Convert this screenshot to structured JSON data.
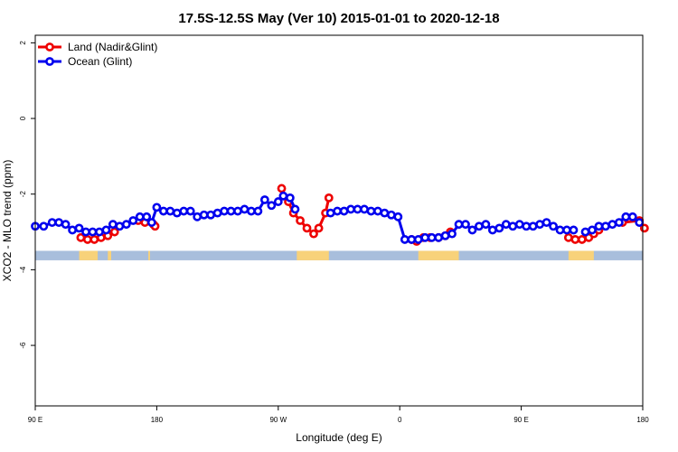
{
  "chart_data": {
    "type": "line",
    "title": "17.5S-12.5S May (Ver 10)   2015-01-01 to 2020-12-18",
    "xlabel": "Longitude (deg E)",
    "ylabel": "XCO2 - MLO trend (ppm)",
    "xlim": [
      90,
      450
    ],
    "ylim": [
      -7.6,
      2.2
    ],
    "x_ticks": [
      {
        "value": 90,
        "label": "90 E"
      },
      {
        "value": 162,
        "label": "180"
      },
      {
        "value": 234,
        "label": "90 W"
      },
      {
        "value": 306,
        "label": "0"
      },
      {
        "value": 378,
        "label": "90 E"
      },
      {
        "value": 450,
        "label": "180"
      }
    ],
    "y_ticks": [
      {
        "value": 2,
        "label": "2"
      },
      {
        "value": 0,
        "label": "0"
      },
      {
        "value": -2,
        "label": "-2"
      },
      {
        "value": -4,
        "label": "-4"
      },
      {
        "value": -6,
        "label": "-6"
      }
    ],
    "grid": false,
    "legend_position": "top-left",
    "series": [
      {
        "name": "Land (Nadir&Glint)",
        "color": "#ee0000",
        "segments": [
          [
            [
              117,
              -3.15
            ],
            [
              121,
              -3.2
            ],
            [
              125,
              -3.2
            ],
            [
              129,
              -3.15
            ],
            [
              133,
              -3.1
            ],
            [
              137,
              -3.0
            ]
          ],
          [
            [
              151,
              -2.7
            ],
            [
              155,
              -2.75
            ],
            [
              160,
              -2.8
            ],
            [
              161,
              -2.85
            ]
          ],
          [
            [
              236,
              -1.85
            ],
            [
              240,
              -2.2
            ],
            [
              243,
              -2.5
            ],
            [
              247,
              -2.7
            ],
            [
              251,
              -2.9
            ],
            [
              255,
              -3.05
            ],
            [
              258,
              -2.9
            ],
            [
              262,
              -2.5
            ],
            [
              264,
              -2.1
            ]
          ],
          [
            [
              313,
              -3.2
            ],
            [
              316,
              -3.25
            ],
            [
              320,
              -3.15
            ],
            [
              324,
              -3.15
            ],
            [
              329,
              -3.15
            ],
            [
              333,
              -3.1
            ],
            [
              336,
              -3.0
            ]
          ],
          [
            [
              406,
              -3.15
            ],
            [
              410,
              -3.2
            ],
            [
              414,
              -3.2
            ],
            [
              418,
              -3.15
            ],
            [
              421,
              -3.05
            ],
            [
              424,
              -2.95
            ]
          ],
          [
            [
              438,
              -2.75
            ],
            [
              448,
              -2.7
            ],
            [
              451,
              -2.9
            ]
          ]
        ]
      },
      {
        "name": "Ocean (Glint)",
        "color": "#0000ee",
        "segments": [
          [
            [
              90,
              -2.85
            ],
            [
              95,
              -2.85
            ],
            [
              100,
              -2.75
            ],
            [
              104,
              -2.75
            ],
            [
              108,
              -2.8
            ],
            [
              112,
              -2.95
            ],
            [
              116,
              -2.9
            ],
            [
              120,
              -3.0
            ],
            [
              124,
              -3.0
            ],
            [
              128,
              -3.0
            ],
            [
              132,
              -2.95
            ],
            [
              136,
              -2.8
            ],
            [
              140,
              -2.85
            ],
            [
              144,
              -2.8
            ],
            [
              148,
              -2.7
            ],
            [
              152,
              -2.6
            ],
            [
              156,
              -2.6
            ],
            [
              159,
              -2.75
            ],
            [
              162,
              -2.35
            ],
            [
              166,
              -2.45
            ],
            [
              170,
              -2.45
            ],
            [
              174,
              -2.5
            ],
            [
              178,
              -2.45
            ],
            [
              182,
              -2.45
            ],
            [
              186,
              -2.6
            ],
            [
              190,
              -2.55
            ],
            [
              194,
              -2.55
            ],
            [
              198,
              -2.5
            ],
            [
              202,
              -2.45
            ],
            [
              206,
              -2.45
            ],
            [
              210,
              -2.45
            ],
            [
              214,
              -2.4
            ],
            [
              218,
              -2.45
            ],
            [
              222,
              -2.45
            ],
            [
              226,
              -2.15
            ],
            [
              230,
              -2.3
            ],
            [
              234,
              -2.2
            ],
            [
              237,
              -2.05
            ],
            [
              241,
              -2.1
            ],
            [
              244,
              -2.4
            ]
          ],
          [
            [
              265,
              -2.5
            ],
            [
              269,
              -2.45
            ],
            [
              273,
              -2.45
            ],
            [
              277,
              -2.4
            ],
            [
              281,
              -2.4
            ],
            [
              285,
              -2.4
            ],
            [
              289,
              -2.45
            ],
            [
              293,
              -2.45
            ],
            [
              297,
              -2.5
            ],
            [
              301,
              -2.55
            ],
            [
              305,
              -2.6
            ],
            [
              309,
              -3.2
            ],
            [
              313,
              -3.2
            ],
            [
              317,
              -3.2
            ],
            [
              321,
              -3.15
            ],
            [
              325,
              -3.15
            ],
            [
              329,
              -3.15
            ],
            [
              333,
              -3.1
            ],
            [
              337,
              -3.05
            ],
            [
              341,
              -2.8
            ],
            [
              345,
              -2.8
            ],
            [
              349,
              -2.95
            ],
            [
              353,
              -2.85
            ],
            [
              357,
              -2.8
            ],
            [
              361,
              -2.95
            ],
            [
              365,
              -2.9
            ],
            [
              369,
              -2.8
            ],
            [
              373,
              -2.85
            ],
            [
              377,
              -2.8
            ],
            [
              381,
              -2.85
            ],
            [
              385,
              -2.85
            ],
            [
              389,
              -2.8
            ],
            [
              393,
              -2.75
            ],
            [
              397,
              -2.85
            ],
            [
              401,
              -2.95
            ],
            [
              405,
              -2.95
            ],
            [
              409,
              -2.95
            ]
          ],
          [
            [
              416,
              -3.0
            ],
            [
              420,
              -2.95
            ],
            [
              424,
              -2.85
            ],
            [
              428,
              -2.85
            ],
            [
              432,
              -2.8
            ],
            [
              436,
              -2.75
            ],
            [
              440,
              -2.6
            ],
            [
              444,
              -2.6
            ],
            [
              448,
              -2.75
            ]
          ]
        ]
      }
    ],
    "land_mask": {
      "y_range": [
        -3.75,
        -3.5
      ],
      "ocean_color": "#a8bedc",
      "land_color": "#f8d27a",
      "land_lon_ranges": [
        [
          116,
          127
        ],
        [
          133,
          135
        ],
        [
          157,
          158
        ],
        [
          245,
          264
        ],
        [
          317,
          341
        ],
        [
          406,
          421
        ]
      ]
    }
  }
}
